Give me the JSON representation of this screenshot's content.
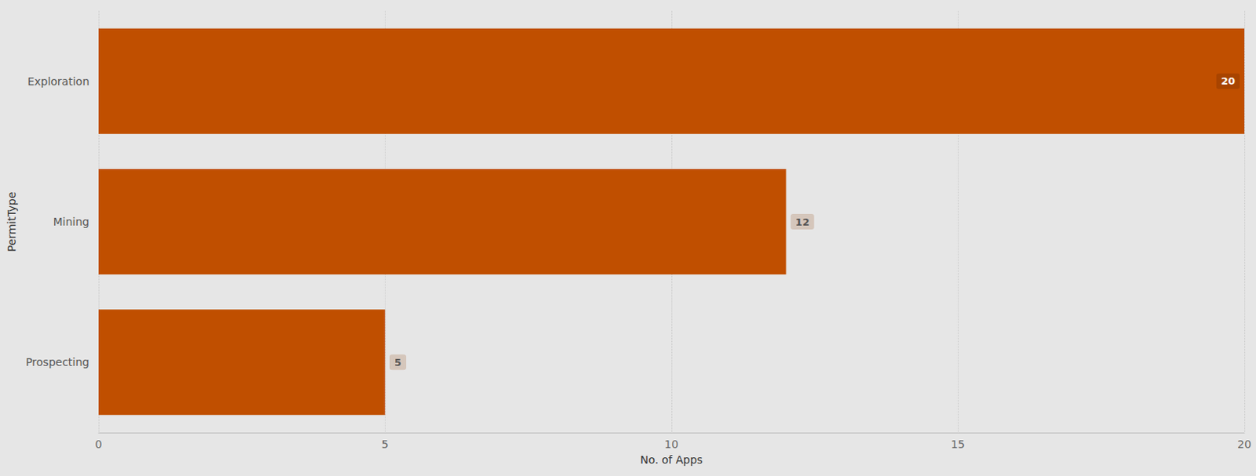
{
  "chart_data": {
    "type": "bar",
    "orientation": "horizontal",
    "categories": [
      "Exploration",
      "Mining",
      "Prospecting"
    ],
    "values": [
      20,
      12,
      5
    ],
    "color": "#c04f00",
    "x_label": "No. of Apps",
    "y_label": "PermitType",
    "xlim": [
      0,
      20
    ],
    "xticks": [
      0,
      5,
      10,
      15,
      20
    ],
    "grid": true,
    "data_labels": true
  }
}
